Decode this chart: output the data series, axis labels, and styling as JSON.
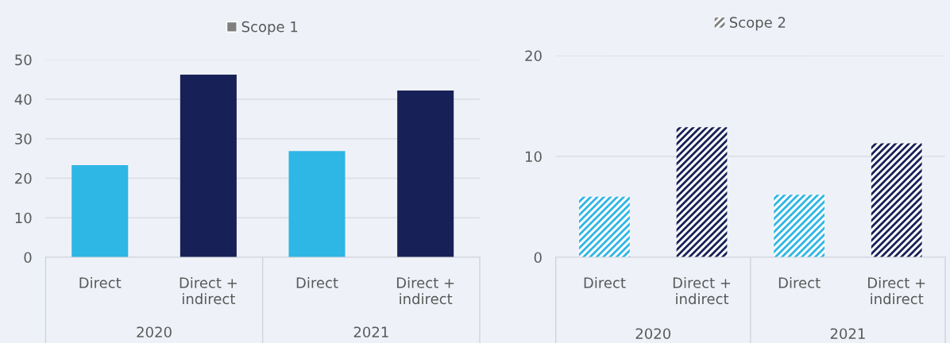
{
  "chart_data": [
    {
      "type": "bar",
      "categories": [
        "Direct",
        "Direct +\nindirect",
        "Direct",
        "Direct +\nindirect"
      ],
      "series": [
        {
          "name": "Scope 1",
          "colors": [
            "#2eb6e4",
            "#172157",
            "#2eb6e4",
            "#172157"
          ],
          "values": [
            23.3,
            46.2,
            26.9,
            42.2
          ]
        }
      ],
      "ylim": [
        0,
        50
      ],
      "yticks": [
        0,
        10,
        20,
        30,
        40,
        50
      ],
      "grid": "y",
      "legend": "top",
      "annotations": [
        "2020",
        "2021"
      ]
    },
    {
      "type": "bar",
      "categories": [
        "Direct",
        "Direct +\nindirect",
        "Direct",
        "Direct +\nindirect"
      ],
      "series": [
        {
          "name": "Scope 2",
          "colors": [
            "#2eb6e4",
            "#172157",
            "#2eb6e4",
            "#172157"
          ],
          "values": [
            6.0,
            12.9,
            6.2,
            11.3
          ]
        }
      ],
      "ylim": [
        0,
        20
      ],
      "yticks": [
        0,
        10,
        20
      ],
      "grid": "y",
      "legend": "top",
      "annotations": [
        "2020",
        "2021"
      ]
    }
  ]
}
